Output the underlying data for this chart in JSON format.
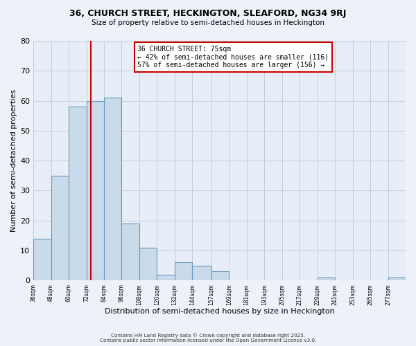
{
  "title1": "36, CHURCH STREET, HECKINGTON, SLEAFORD, NG34 9RJ",
  "title2": "Size of property relative to semi-detached houses in Heckington",
  "xlabel": "Distribution of semi-detached houses by size in Heckington",
  "ylabel": "Number of semi-detached properties",
  "bar_values": [
    14,
    35,
    58,
    60,
    61,
    19,
    11,
    2,
    6,
    5,
    3,
    0,
    0,
    0,
    0,
    0,
    1,
    0,
    0,
    0,
    1
  ],
  "bin_labels": [
    "36sqm",
    "48sqm",
    "60sqm",
    "72sqm",
    "84sqm",
    "96sqm",
    "108sqm",
    "120sqm",
    "132sqm",
    "144sqm",
    "157sqm",
    "169sqm",
    "181sqm",
    "193sqm",
    "205sqm",
    "217sqm",
    "229sqm",
    "241sqm",
    "253sqm",
    "265sqm",
    "277sqm"
  ],
  "bin_edges": [
    36,
    48,
    60,
    72,
    84,
    96,
    108,
    120,
    132,
    144,
    157,
    169,
    181,
    193,
    205,
    217,
    229,
    241,
    253,
    265,
    277,
    289
  ],
  "bar_color": "#c9daea",
  "bar_edge_color": "#6699bb",
  "vline_x": 75,
  "vline_color": "#cc0000",
  "annotation_title": "36 CHURCH STREET: 75sqm",
  "annotation_line1": "← 42% of semi-detached houses are smaller (116)",
  "annotation_line2": "57% of semi-detached houses are larger (156) →",
  "annotation_box_color": "#ffffff",
  "annotation_box_edge": "#cc0000",
  "ylim": [
    0,
    80
  ],
  "yticks": [
    0,
    10,
    20,
    30,
    40,
    50,
    60,
    70,
    80
  ],
  "footnote1": "Contains HM Land Registry data © Crown copyright and database right 2025.",
  "footnote2": "Contains public sector information licensed under the Open Government Licence v3.0.",
  "bg_color": "#eef2f8",
  "plot_bg_color": "#e8eef8",
  "grid_color": "#c8ccd8"
}
